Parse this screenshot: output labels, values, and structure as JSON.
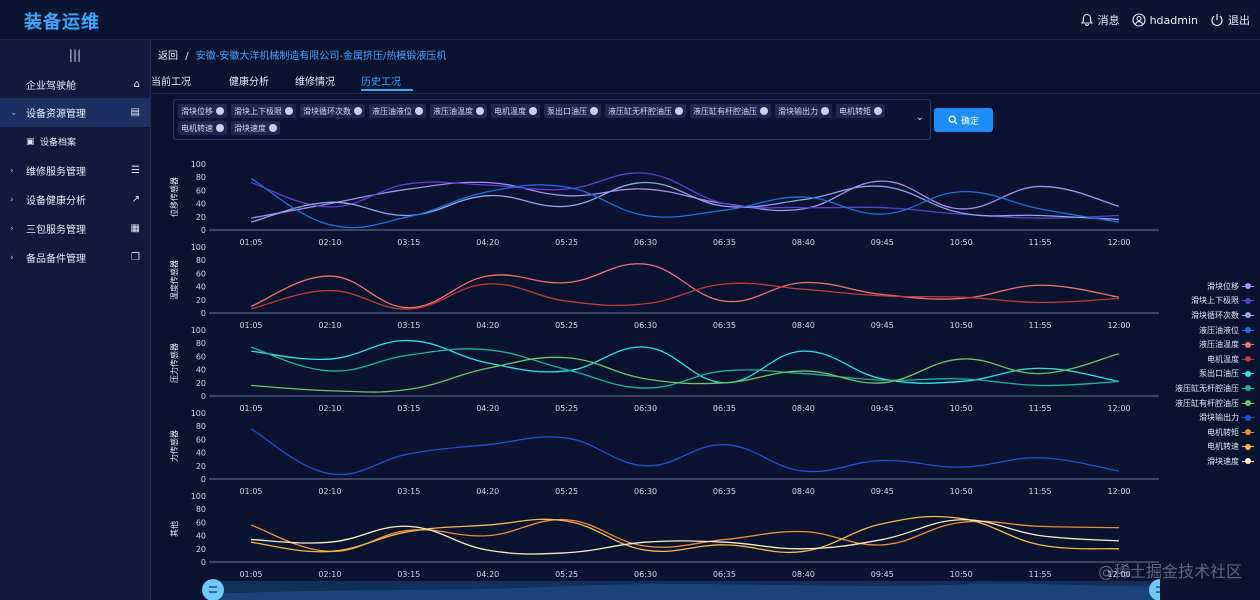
{
  "app": {
    "title": "装备运维"
  },
  "topbar": {
    "messages": "消息",
    "user": "hdadmin",
    "logout": "退出"
  },
  "sidebar": {
    "collapse_icon": "menu-bars-icon",
    "items": [
      {
        "label": "企业驾驶舱",
        "icon": "home-icon"
      },
      {
        "label": "设备资源管理",
        "icon": "list-icon",
        "expanded": true
      },
      {
        "label": "设备档案",
        "icon": "file-icon",
        "sub": true
      },
      {
        "label": "维修服务管理",
        "icon": "list-icon"
      },
      {
        "label": "设备健康分析",
        "icon": "line-chart-icon"
      },
      {
        "label": "三包服务管理",
        "icon": "grid-icon"
      },
      {
        "label": "备品备件管理",
        "icon": "copy-icon"
      }
    ]
  },
  "breadcrumb": {
    "back": "返回",
    "sep": "/",
    "path": "安徽-安徽大洋机械制造有限公司-金属挤压/热模锻液压机"
  },
  "tabs": [
    {
      "label": "当前工况"
    },
    {
      "label": "健康分析"
    },
    {
      "label": "维修情况"
    },
    {
      "label": "历史工况",
      "active": true
    }
  ],
  "filter": {
    "tags": [
      "滑块位移",
      "滑块上下极限",
      "滑块循环次数",
      "液压油液位",
      "液压油温度",
      "电机温度",
      "泵出口油压",
      "液压缸无杆腔油压",
      "液压缸有杆腔油压",
      "滑块输出力",
      "电机转矩",
      "电机转速",
      "滑块速度"
    ],
    "confirm": "确定"
  },
  "chart_data": {
    "type": "line",
    "x": [
      "01:05",
      "02:10",
      "03:15",
      "04:20",
      "05:25",
      "06:30",
      "06:35",
      "08:40",
      "09:45",
      "10:50",
      "11:55",
      "12:00"
    ],
    "ylim": [
      0,
      100
    ],
    "yticks": [
      0,
      20,
      40,
      60,
      80,
      100
    ],
    "panels": [
      {
        "ylabel": "位移传感器",
        "series": [
          "滑块位移",
          "滑块上下极限",
          "滑块循环次数",
          "液压油液位"
        ]
      },
      {
        "ylabel": "温度传感器",
        "series": [
          "液压油温度",
          "电机温度"
        ]
      },
      {
        "ylabel": "压力传感器",
        "series": [
          "泵出口油压",
          "液压缸无杆腔油压",
          "液压缸有杆腔油压"
        ]
      },
      {
        "ylabel": "力传感器",
        "series": [
          "滑块输出力"
        ]
      },
      {
        "ylabel": "其他",
        "series": [
          "电机转矩",
          "电机转速",
          "滑块速度"
        ]
      }
    ],
    "series": [
      {
        "name": "滑块位移",
        "color": "#a98cf0",
        "values": [
          18,
          40,
          62,
          72,
          52,
          62,
          40,
          32,
          74,
          32,
          66,
          36
        ]
      },
      {
        "name": "滑块上下极限",
        "color": "#5b3fd0",
        "values": [
          72,
          35,
          70,
          68,
          62,
          86,
          40,
          34,
          34,
          24,
          18,
          22
        ]
      },
      {
        "name": "滑块循环次数",
        "color": "#8fa6e8",
        "values": [
          12,
          42,
          22,
          52,
          36,
          72,
          36,
          46,
          66,
          26,
          22,
          16
        ]
      },
      {
        "name": "液压油液位",
        "color": "#1f6fe0",
        "values": [
          78,
          8,
          20,
          58,
          65,
          22,
          30,
          50,
          24,
          58,
          32,
          12
        ]
      },
      {
        "name": "液压油温度",
        "color": "#f07070",
        "values": [
          10,
          56,
          8,
          56,
          46,
          74,
          18,
          46,
          28,
          22,
          42,
          24
        ]
      },
      {
        "name": "电机温度",
        "color": "#c03a3a",
        "values": [
          6,
          34,
          6,
          44,
          18,
          14,
          44,
          36,
          26,
          24,
          16,
          22
        ]
      },
      {
        "name": "泵出口油压",
        "color": "#2fe6e6",
        "values": [
          68,
          56,
          84,
          50,
          38,
          74,
          20,
          68,
          26,
          22,
          42,
          22
        ]
      },
      {
        "name": "液压缸无杆腔油压",
        "color": "#20b59a",
        "values": [
          74,
          38,
          62,
          70,
          40,
          12,
          38,
          34,
          24,
          26,
          16,
          22
        ]
      },
      {
        "name": "液压缸有杆腔油压",
        "color": "#6ec46a",
        "values": [
          16,
          8,
          10,
          42,
          58,
          26,
          20,
          38,
          20,
          56,
          34,
          64
        ]
      },
      {
        "name": "滑块输出力",
        "color": "#1e4fd8",
        "values": [
          76,
          8,
          38,
          52,
          62,
          20,
          52,
          12,
          28,
          18,
          32,
          12
        ]
      },
      {
        "name": "电机转矩",
        "color": "#f08a3a",
        "values": [
          56,
          16,
          48,
          40,
          64,
          24,
          34,
          46,
          26,
          60,
          54,
          52
        ]
      },
      {
        "name": "电机转速",
        "color": "#f5b84a",
        "values": [
          30,
          16,
          46,
          56,
          62,
          18,
          26,
          16,
          58,
          66,
          26,
          20
        ]
      },
      {
        "name": "滑块速度",
        "color": "#f7eec8",
        "values": [
          34,
          30,
          54,
          18,
          14,
          30,
          30,
          20,
          34,
          64,
          40,
          32
        ]
      }
    ]
  },
  "watermark": "@稀土掘金技术社区"
}
